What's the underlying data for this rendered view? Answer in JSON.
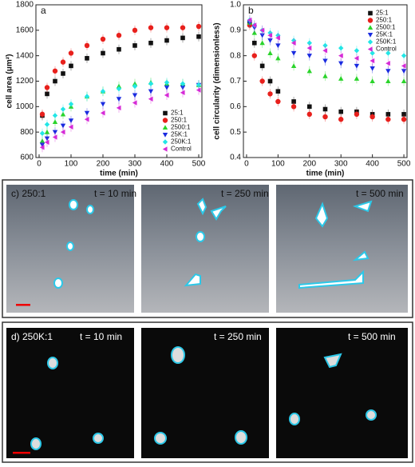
{
  "chart_data": [
    {
      "type": "scatter",
      "panel_label": "a",
      "xlabel": "time (min)",
      "ylabel": "cell area (μm²)",
      "xlim": [
        -10,
        510
      ],
      "ylim": [
        600,
        1800
      ],
      "xticks": [
        0,
        100,
        200,
        300,
        400,
        500
      ],
      "yticks": [
        600,
        800,
        1000,
        1200,
        1400,
        1600,
        1800
      ],
      "legend": "lower right",
      "x": [
        10,
        25,
        50,
        75,
        100,
        150,
        200,
        250,
        300,
        350,
        400,
        450,
        500
      ],
      "series": [
        {
          "name": "25:1",
          "color": "#111111",
          "marker": "square",
          "values": [
            930,
            1100,
            1200,
            1260,
            1320,
            1380,
            1420,
            1450,
            1480,
            1500,
            1520,
            1540,
            1550
          ]
        },
        {
          "name": "250:1",
          "color": "#e8201c",
          "marker": "circle",
          "values": [
            940,
            1150,
            1280,
            1350,
            1420,
            1480,
            1530,
            1560,
            1600,
            1620,
            1620,
            1620,
            1630
          ]
        },
        {
          "name": "2500:1",
          "color": "#2ad42a",
          "marker": "up",
          "values": [
            730,
            800,
            880,
            940,
            1000,
            1080,
            1120,
            1160,
            1180,
            1190,
            1180,
            1180,
            1170
          ]
        },
        {
          "name": "25K:1",
          "color": "#1a2be0",
          "marker": "down",
          "values": [
            700,
            750,
            800,
            850,
            890,
            950,
            1020,
            1060,
            1090,
            1120,
            1150,
            1150,
            1170
          ]
        },
        {
          "name": "250K:1",
          "color": "#22e6e6",
          "marker": "diamond",
          "values": [
            790,
            860,
            930,
            980,
            1020,
            1080,
            1120,
            1140,
            1160,
            1180,
            1190,
            1180,
            1170
          ]
        },
        {
          "name": "Control",
          "color": "#d62ad6",
          "marker": "left",
          "values": [
            680,
            720,
            760,
            800,
            840,
            900,
            950,
            990,
            1030,
            1060,
            1090,
            1110,
            1130
          ]
        }
      ]
    },
    {
      "type": "scatter",
      "panel_label": "b",
      "xlabel": "time (min)",
      "ylabel": "cell circularity (dimensionless)",
      "xlim": [
        -10,
        510
      ],
      "ylim": [
        0.4,
        1.0
      ],
      "xticks": [
        0,
        100,
        200,
        300,
        400,
        500
      ],
      "yticks": [
        0.4,
        0.5,
        0.6,
        0.7,
        0.8,
        0.9,
        {
          "value": 1.0,
          "label": "1.0"
        }
      ],
      "legend": "upper right",
      "x": [
        10,
        25,
        50,
        75,
        100,
        150,
        200,
        250,
        300,
        350,
        400,
        450,
        500
      ],
      "series": [
        {
          "name": "25:1",
          "color": "#111111",
          "marker": "square",
          "values": [
            0.93,
            0.85,
            0.76,
            0.7,
            0.66,
            0.62,
            0.6,
            0.59,
            0.58,
            0.58,
            0.57,
            0.57,
            0.57
          ]
        },
        {
          "name": "250:1",
          "color": "#e8201c",
          "marker": "circle",
          "values": [
            0.92,
            0.8,
            0.7,
            0.65,
            0.62,
            0.6,
            0.57,
            0.56,
            0.55,
            0.57,
            0.56,
            0.55,
            0.55
          ]
        },
        {
          "name": "2500:1",
          "color": "#2ad42a",
          "marker": "up",
          "values": [
            0.93,
            0.89,
            0.85,
            0.81,
            0.79,
            0.76,
            0.74,
            0.72,
            0.71,
            0.71,
            0.7,
            0.7,
            0.7
          ]
        },
        {
          "name": "25K:1",
          "color": "#1a2be0",
          "marker": "down",
          "values": [
            0.93,
            0.91,
            0.88,
            0.86,
            0.84,
            0.81,
            0.8,
            0.78,
            0.77,
            0.76,
            0.75,
            0.74,
            0.74
          ]
        },
        {
          "name": "250K:1",
          "color": "#22e6e6",
          "marker": "diamond",
          "values": [
            0.94,
            0.92,
            0.9,
            0.89,
            0.88,
            0.86,
            0.85,
            0.84,
            0.83,
            0.82,
            0.81,
            0.81,
            0.8
          ]
        },
        {
          "name": "Control",
          "color": "#d62ad6",
          "marker": "left",
          "values": [
            0.94,
            0.92,
            0.9,
            0.88,
            0.87,
            0.85,
            0.83,
            0.82,
            0.8,
            0.79,
            0.78,
            0.77,
            0.76
          ]
        }
      ]
    }
  ],
  "panels": [
    {
      "label": "c) 250:1",
      "times": [
        "t = 10 min",
        "t = 250 min",
        "t = 500 min"
      ]
    },
    {
      "label": "d) 250K:1",
      "times": [
        "t = 10 min",
        "t = 250 min",
        "t = 500 min"
      ]
    }
  ]
}
